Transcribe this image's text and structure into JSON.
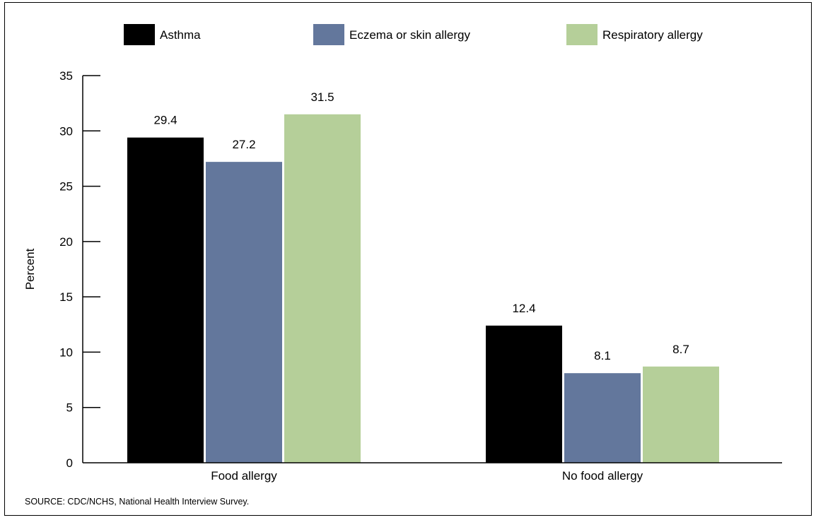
{
  "chart_data": {
    "type": "bar",
    "title": "",
    "xlabel": "",
    "ylabel": "Percent",
    "ylim": [
      0,
      35
    ],
    "yticks": [
      0,
      5,
      10,
      15,
      20,
      25,
      30,
      35
    ],
    "categories": [
      "Food allergy",
      "No food allergy"
    ],
    "series": [
      {
        "name": "Asthma",
        "color": "#000000",
        "values": [
          29.4,
          12.4
        ]
      },
      {
        "name": "Eczema or skin allergy",
        "color": "#63779c",
        "values": [
          27.2,
          8.1
        ]
      },
      {
        "name": "Respiratory allergy",
        "color": "#b5cf99",
        "values": [
          31.5,
          8.7
        ]
      }
    ],
    "legend": "top",
    "grid": false
  },
  "source_note": "SOURCE: CDC/NCHS, National Health Interview Survey."
}
